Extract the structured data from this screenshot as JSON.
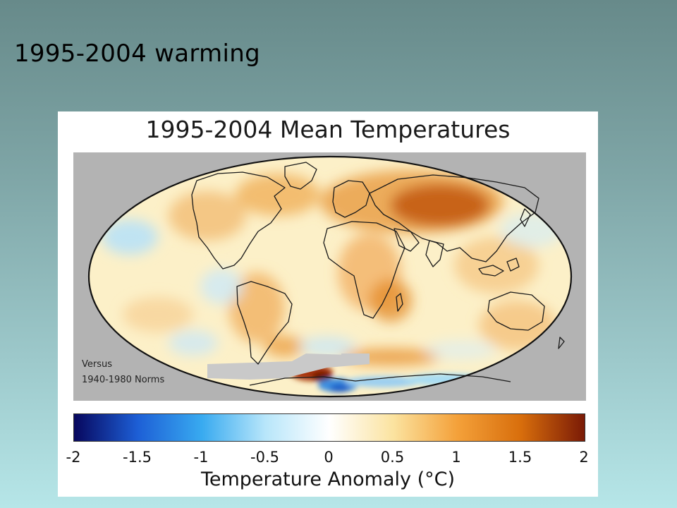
{
  "slide": {
    "title": "1995-2004 warming"
  },
  "figure": {
    "title": "1995-2004 Mean Temperatures",
    "note_line1": "Versus",
    "note_line2": "1940-1980 Norms"
  },
  "colorbar": {
    "label": "Temperature Anomaly (°C)",
    "ticks": [
      "-2",
      "-1.5",
      "-1",
      "-0.5",
      "0",
      "0.5",
      "1",
      "1.5",
      "2"
    ],
    "range": [
      -2,
      2
    ],
    "colors": [
      "#07075e",
      "#1d5fd6",
      "#38aaf0",
      "#b8e6fa",
      "#ffffff",
      "#fbe3a0",
      "#f4a13a",
      "#d86e0c",
      "#7a1a06"
    ]
  },
  "map": {
    "projection": "Mollweide",
    "missing_data_color": "#b3b3b3",
    "land_outline_color": "#1a1a1a"
  }
}
